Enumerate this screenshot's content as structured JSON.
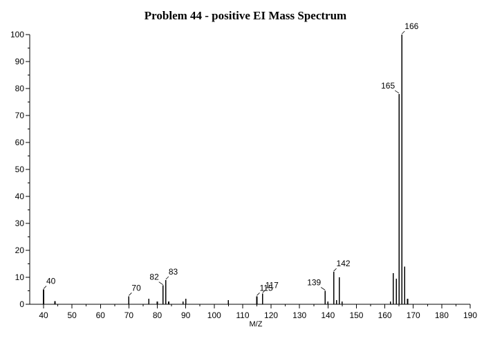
{
  "chart_data": {
    "type": "bar",
    "title": "Problem 44 - positive EI Mass Spectrum",
    "xlabel": "M/Z",
    "ylabel": "",
    "xlim": [
      35,
      190
    ],
    "ylim": [
      0,
      100
    ],
    "xticks": [
      40,
      50,
      60,
      70,
      80,
      90,
      100,
      110,
      120,
      130,
      140,
      150,
      160,
      170,
      180,
      190
    ],
    "yticks": [
      0,
      10,
      20,
      30,
      40,
      50,
      60,
      70,
      80,
      90,
      100
    ],
    "grid": false,
    "peaks": [
      {
        "mz": 40,
        "intensity": 5.5,
        "label": "40"
      },
      {
        "mz": 44,
        "intensity": 1.2,
        "label": ""
      },
      {
        "mz": 70,
        "intensity": 3,
        "label": "70"
      },
      {
        "mz": 77,
        "intensity": 2,
        "label": ""
      },
      {
        "mz": 80,
        "intensity": 1,
        "label": ""
      },
      {
        "mz": 82,
        "intensity": 7,
        "label": "82"
      },
      {
        "mz": 83,
        "intensity": 9,
        "label": "83"
      },
      {
        "mz": 84,
        "intensity": 1,
        "label": ""
      },
      {
        "mz": 89,
        "intensity": 1,
        "label": ""
      },
      {
        "mz": 90,
        "intensity": 2,
        "label": ""
      },
      {
        "mz": 105,
        "intensity": 1.5,
        "label": ""
      },
      {
        "mz": 115,
        "intensity": 3,
        "label": "115"
      },
      {
        "mz": 117,
        "intensity": 4,
        "label": "117"
      },
      {
        "mz": 139,
        "intensity": 5,
        "label": "139"
      },
      {
        "mz": 140,
        "intensity": 1,
        "label": ""
      },
      {
        "mz": 142,
        "intensity": 12,
        "label": "142"
      },
      {
        "mz": 143,
        "intensity": 1.5,
        "label": ""
      },
      {
        "mz": 144,
        "intensity": 10,
        "label": ""
      },
      {
        "mz": 145,
        "intensity": 1,
        "label": ""
      },
      {
        "mz": 162,
        "intensity": 1,
        "label": ""
      },
      {
        "mz": 163,
        "intensity": 11.5,
        "label": ""
      },
      {
        "mz": 164,
        "intensity": 9.5,
        "label": ""
      },
      {
        "mz": 165,
        "intensity": 78,
        "label": "165"
      },
      {
        "mz": 166,
        "intensity": 100,
        "label": "166"
      },
      {
        "mz": 167,
        "intensity": 14,
        "label": ""
      },
      {
        "mz": 168,
        "intensity": 2,
        "label": ""
      }
    ]
  }
}
